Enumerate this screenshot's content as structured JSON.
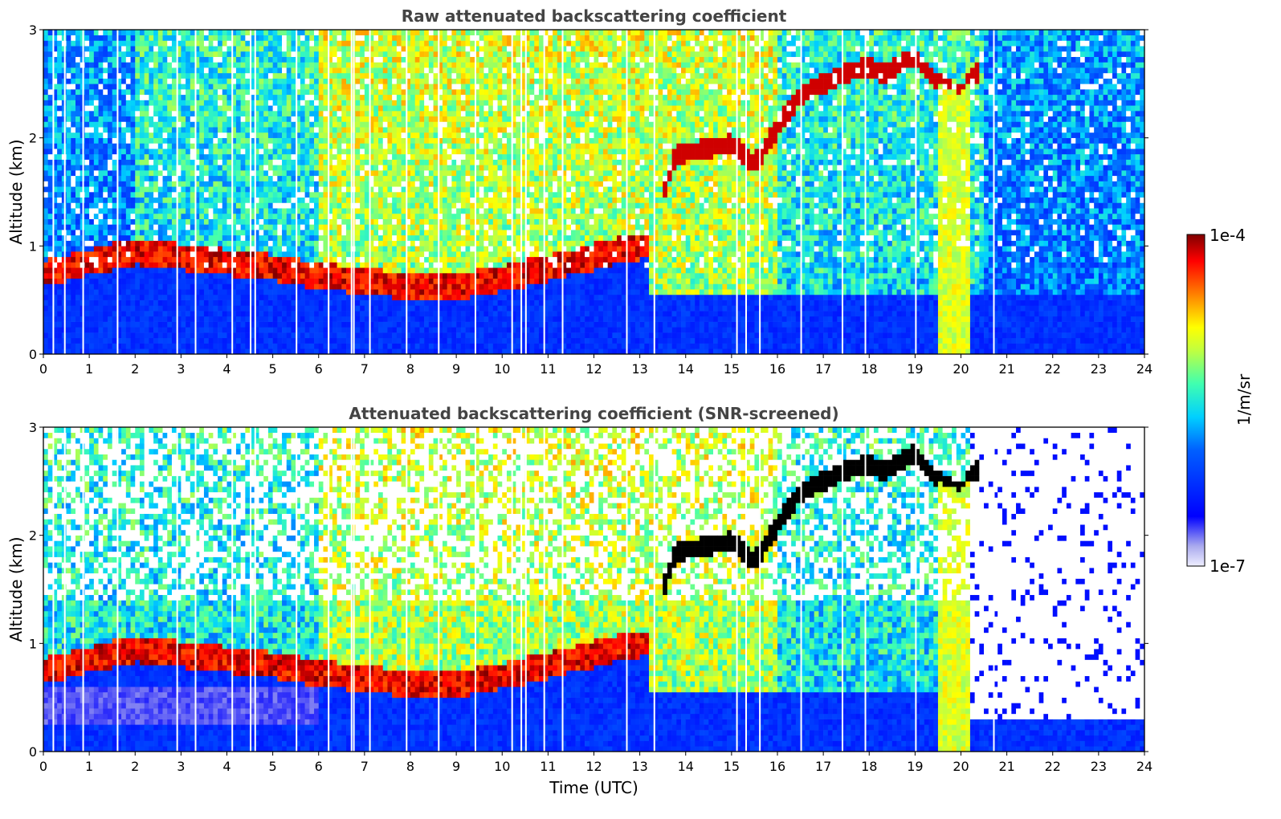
{
  "chart_data": [
    {
      "type": "heatmap",
      "title": "Raw attenuated backscattering coefficient",
      "xlabel": "",
      "ylabel": "Altitude (km)",
      "xlim": [
        0,
        24
      ],
      "ylim": [
        0,
        3
      ],
      "xticks": [
        "0",
        "1",
        "2",
        "3",
        "4",
        "5",
        "6",
        "7",
        "8",
        "9",
        "10",
        "11",
        "12",
        "13",
        "14",
        "15",
        "16",
        "17",
        "18",
        "19",
        "20",
        "21",
        "22",
        "23",
        "24"
      ],
      "yticks": [
        "0",
        "1",
        "2",
        "3"
      ],
      "grid": false,
      "features": {
        "boundary_layer_top_km": [
          [
            0,
            0.75
          ],
          [
            1,
            0.85
          ],
          [
            2,
            0.95
          ],
          [
            3,
            0.9
          ],
          [
            4,
            0.85
          ],
          [
            5,
            0.8
          ],
          [
            6,
            0.72
          ],
          [
            7,
            0.68
          ],
          [
            8,
            0.62
          ],
          [
            9,
            0.62
          ],
          [
            10,
            0.7
          ],
          [
            11,
            0.8
          ],
          [
            12,
            0.9
          ],
          [
            13,
            1.0
          ]
        ],
        "cloud_layer_km": [
          [
            13.5,
            1.5
          ],
          [
            13.8,
            1.85
          ],
          [
            14.5,
            1.9
          ],
          [
            15.0,
            1.95
          ],
          [
            15.5,
            1.75
          ],
          [
            16.0,
            2.1
          ],
          [
            16.5,
            2.4
          ],
          [
            17.0,
            2.5
          ],
          [
            17.5,
            2.6
          ],
          [
            18.0,
            2.65
          ],
          [
            18.3,
            2.6
          ],
          [
            19.0,
            2.75
          ],
          [
            19.5,
            2.5
          ],
          [
            20.0,
            2.4
          ],
          [
            20.3,
            2.6
          ]
        ],
        "precipitation_shaft_hours": [
          19.55,
          20.15
        ]
      }
    },
    {
      "type": "heatmap",
      "title": "Attenuated backscattering coefficient (SNR-screened)",
      "xlabel": "Time (UTC)",
      "ylabel": "Altitude (km)",
      "xlim": [
        0,
        24
      ],
      "ylim": [
        0,
        3
      ],
      "xticks": [
        "0",
        "1",
        "2",
        "3",
        "4",
        "5",
        "6",
        "7",
        "8",
        "9",
        "10",
        "11",
        "12",
        "13",
        "14",
        "15",
        "16",
        "17",
        "18",
        "19",
        "20",
        "21",
        "22",
        "23",
        "24"
      ],
      "yticks": [
        "0",
        "1",
        "2",
        "3"
      ],
      "grid": false,
      "features": {
        "boundary_layer_top_km": [
          [
            0,
            0.75
          ],
          [
            1,
            0.85
          ],
          [
            2,
            0.95
          ],
          [
            3,
            0.9
          ],
          [
            4,
            0.85
          ],
          [
            5,
            0.8
          ],
          [
            6,
            0.72
          ],
          [
            7,
            0.68
          ],
          [
            8,
            0.62
          ],
          [
            9,
            0.62
          ],
          [
            10,
            0.7
          ],
          [
            11,
            0.8
          ],
          [
            12,
            0.9
          ],
          [
            13,
            1.0
          ]
        ],
        "cloud_layer_km": [
          [
            13.5,
            1.5
          ],
          [
            13.8,
            1.85
          ],
          [
            14.5,
            1.9
          ],
          [
            15.0,
            1.95
          ],
          [
            15.5,
            1.75
          ],
          [
            16.0,
            2.1
          ],
          [
            16.5,
            2.4
          ],
          [
            17.0,
            2.5
          ],
          [
            17.5,
            2.6
          ],
          [
            18.0,
            2.65
          ],
          [
            18.3,
            2.6
          ],
          [
            19.0,
            2.75
          ],
          [
            19.5,
            2.5
          ],
          [
            20.0,
            2.4
          ],
          [
            20.3,
            2.6
          ]
        ],
        "precipitation_shaft_hours": [
          19.55,
          20.15
        ],
        "screened_out_after_hour": 20.2
      }
    }
  ],
  "colorbar": {
    "label": "1/m/sr",
    "max_label": "1e-4",
    "min_label": "1e-7",
    "colormap": [
      "#eeeeff",
      "#aaaaee",
      "#0000ff",
      "#0080ff",
      "#00e0e0",
      "#80ff80",
      "#ffff00",
      "#ff8000",
      "#ff0000",
      "#800000"
    ]
  }
}
